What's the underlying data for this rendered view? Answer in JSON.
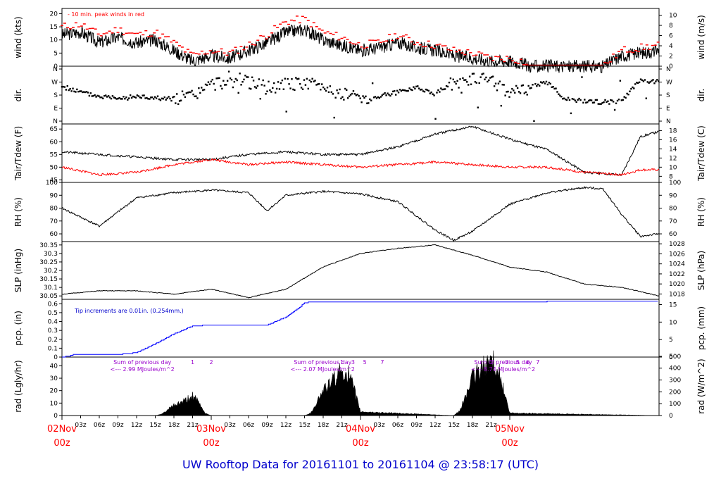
{
  "title": "UW Rooftop Data for 20161101  to  20161104 @ 23:58:17  (UTC)",
  "colors": {
    "black": "#000000",
    "red": "#ff0000",
    "blue": "#0000ff",
    "purple": "#9900cc",
    "title": "#0000cc"
  },
  "chart_data": [
    {
      "type": "line",
      "panel": "wind",
      "ylabel": "wind (kts)",
      "ylabel2": "wind (m/s)",
      "ylim": [
        0,
        22
      ],
      "yticks": [
        0,
        5,
        10,
        15,
        20
      ],
      "y2lim": [
        0,
        11.3
      ],
      "y2ticks": [
        0,
        2,
        4,
        6,
        8,
        10
      ],
      "annotation": "10 min. peak winds in red",
      "series": [
        {
          "color": "black",
          "x": [
            0,
            3,
            6,
            9,
            12,
            15,
            18,
            21,
            24,
            27,
            30,
            33,
            36,
            39,
            42,
            45,
            48,
            51,
            54,
            57,
            60,
            63,
            66,
            69,
            72,
            74,
            75,
            87,
            90,
            93,
            96
          ],
          "values": [
            12,
            13,
            9,
            11,
            9,
            10,
            6,
            2,
            4,
            3,
            6,
            9,
            13,
            14,
            10,
            8,
            6,
            7,
            9,
            7,
            6,
            4,
            3,
            2,
            2,
            1,
            0,
            0,
            4,
            5,
            6
          ]
        },
        {
          "color": "red",
          "x": [
            0,
            3,
            6,
            9,
            12,
            15,
            18,
            21,
            24,
            27,
            30,
            33,
            36,
            39,
            42,
            45,
            48,
            51,
            54,
            57,
            60,
            63,
            66,
            69,
            72,
            74,
            75,
            87,
            90,
            93,
            96
          ],
          "values": [
            15,
            16,
            12,
            14,
            12,
            13,
            9,
            4,
            6,
            5,
            8,
            12,
            17,
            18,
            13,
            11,
            8,
            9,
            12,
            9,
            8,
            6,
            5,
            3,
            3,
            2,
            0,
            0,
            6,
            7,
            8
          ]
        }
      ]
    },
    {
      "type": "scatter",
      "panel": "dir",
      "ylabel": "dir.",
      "ylabel2": "dir.",
      "ytick_labels": [
        "N",
        "E",
        "S",
        "W",
        "N"
      ],
      "x": [
        0,
        3,
        6,
        9,
        12,
        15,
        18,
        21,
        24,
        27,
        30,
        33,
        36,
        39,
        42,
        45,
        48,
        51,
        54,
        57,
        60,
        63,
        66,
        69,
        72,
        75,
        78,
        81,
        84,
        87,
        90,
        93,
        96
      ],
      "values": [
        240,
        200,
        170,
        165,
        170,
        160,
        155,
        175,
        250,
        275,
        270,
        230,
        250,
        260,
        240,
        190,
        165,
        170,
        200,
        235,
        190,
        265,
        290,
        280,
        190,
        230,
        270,
        150,
        140,
        130,
        140,
        280,
        270
      ]
    },
    {
      "type": "line",
      "panel": "temp",
      "ylabel": "Tair/Tdew (F)",
      "ylabel2": "Tair/Tdew (C)",
      "ylim": [
        44,
        67
      ],
      "yticks": [
        45,
        50,
        55,
        60,
        65
      ],
      "y2ticks": [
        8,
        10,
        12,
        14,
        16,
        18
      ],
      "series": [
        {
          "name": "Tair",
          "color": "black",
          "x": [
            0,
            6,
            12,
            18,
            24,
            30,
            36,
            42,
            48,
            54,
            60,
            66,
            72,
            78,
            84,
            90,
            93,
            96
          ],
          "values": [
            56,
            55,
            54,
            53,
            53,
            55,
            56,
            55,
            55,
            58,
            63,
            66,
            61,
            57,
            48,
            47,
            62,
            64
          ]
        },
        {
          "name": "Tdew",
          "color": "red",
          "x": [
            0,
            6,
            12,
            18,
            24,
            30,
            36,
            42,
            48,
            54,
            60,
            66,
            72,
            78,
            84,
            90,
            93,
            96
          ],
          "values": [
            50,
            47,
            48,
            51,
            53,
            51,
            52,
            51,
            50,
            51,
            52,
            51,
            50,
            50,
            48,
            47,
            49,
            49
          ]
        }
      ]
    },
    {
      "type": "line",
      "panel": "rh",
      "ylabel": "RH (%)",
      "ylabel2": "RH (%)",
      "ylim": [
        54,
        100
      ],
      "yticks": [
        60,
        70,
        80,
        90,
        100
      ],
      "x": [
        0,
        6,
        12,
        18,
        24,
        30,
        33,
        36,
        42,
        48,
        54,
        60,
        63,
        66,
        72,
        78,
        84,
        87,
        90,
        93,
        96
      ],
      "values": [
        80,
        66,
        88,
        92,
        94,
        92,
        78,
        90,
        93,
        91,
        85,
        63,
        55,
        62,
        83,
        92,
        96,
        95,
        75,
        58,
        60
      ]
    },
    {
      "type": "line",
      "panel": "slp",
      "ylabel": "SLP (inHg)",
      "ylabel2": "SLP (hPa)",
      "ylim": [
        30.03,
        30.37
      ],
      "yticks": [
        30.05,
        30.1,
        30.15,
        30.2,
        30.25,
        30.3,
        30.35
      ],
      "y2ticks": [
        1018,
        1020,
        1022,
        1024,
        1026,
        1028
      ],
      "x": [
        0,
        6,
        12,
        18,
        24,
        30,
        36,
        42,
        48,
        54,
        60,
        66,
        72,
        78,
        84,
        90,
        96
      ],
      "values": [
        30.06,
        30.08,
        30.08,
        30.06,
        30.09,
        30.04,
        30.09,
        30.22,
        30.3,
        30.33,
        30.35,
        30.29,
        30.22,
        30.19,
        30.12,
        30.1,
        30.05
      ]
    },
    {
      "type": "line",
      "panel": "pcp",
      "ylabel": "pcp. (in)",
      "ylabel2": "pcp. (mm)",
      "ylim": [
        0,
        0.65
      ],
      "yticks": [
        0,
        0.1,
        0.2,
        0.3,
        0.4,
        0.5,
        0.6
      ],
      "y2ticks": [
        0,
        5,
        10,
        15
      ],
      "annotation": "Tip increments are 0.01in. (0.254mm.)",
      "x": [
        0,
        1,
        2,
        9,
        12,
        15,
        18,
        21,
        24,
        27,
        30,
        33,
        36,
        38,
        39,
        40,
        42,
        45,
        48,
        60,
        72,
        84,
        96
      ],
      "values": [
        0,
        0.01,
        0.03,
        0.03,
        0.05,
        0.15,
        0.26,
        0.35,
        0.36,
        0.36,
        0.36,
        0.36,
        0.45,
        0.55,
        0.61,
        0.62,
        0.62,
        0.62,
        0.62,
        0.62,
        0.62,
        0.63,
        0.63
      ]
    },
    {
      "type": "area",
      "panel": "rad",
      "ylabel": "rad (Lgly/hr)",
      "ylabel2": "rad (W/m^2)",
      "ylim": [
        0,
        47
      ],
      "yticks": [
        0,
        10,
        20,
        30,
        40
      ],
      "y2ticks": [
        0,
        100,
        200,
        300,
        400,
        500
      ],
      "x": [
        0,
        15,
        16,
        18,
        20,
        21,
        22,
        23,
        24,
        39,
        40,
        42,
        44,
        45,
        46,
        47,
        48,
        63,
        64,
        66,
        68,
        69,
        70,
        71,
        72,
        96
      ],
      "values": [
        0,
        0,
        1,
        8,
        12,
        16,
        10,
        2,
        0,
        0,
        2,
        20,
        30,
        36,
        34,
        20,
        3,
        0,
        4,
        30,
        40,
        45,
        40,
        20,
        2,
        0
      ],
      "annotations": [
        {
          "text": "Sum of previous day",
          "value": "<--- 2.99 MJoules/m^2"
        },
        {
          "text": "Sum of previous day",
          "value": "<--- 2.07 MJoules/m^2"
        },
        {
          "text": "Sum of previous day",
          "value": "<--- 8.74 MJoules/m^2"
        }
      ],
      "hour_marks": [
        [
          "1",
          "2"
        ],
        [
          "1",
          "3",
          "5",
          "7"
        ],
        [
          "1",
          "3",
          "5",
          "6",
          "7"
        ]
      ]
    }
  ],
  "x_axis": {
    "hour_ticks": [
      "03z",
      "06z",
      "09z",
      "12z",
      "15z",
      "18z",
      "21z"
    ],
    "day_labels": [
      {
        "date": "02Nov",
        "hour": "00z"
      },
      {
        "date": "03Nov",
        "hour": "00z"
      },
      {
        "date": "04Nov",
        "hour": "00z"
      },
      {
        "date": "05Nov",
        "hour": "00z"
      }
    ]
  }
}
